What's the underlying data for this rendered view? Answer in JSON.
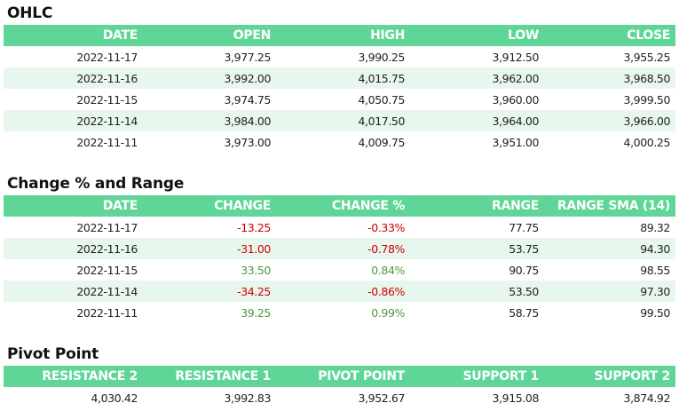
{
  "ohlc": {
    "title": "OHLC",
    "headers": [
      "DATE",
      "OPEN",
      "HIGH",
      "LOW",
      "CLOSE"
    ],
    "rows": [
      [
        "2022-11-17",
        "3,977.25",
        "3,990.25",
        "3,912.50",
        "3,955.25"
      ],
      [
        "2022-11-16",
        "3,992.00",
        "4,015.75",
        "3,962.00",
        "3,968.50"
      ],
      [
        "2022-11-15",
        "3,974.75",
        "4,050.75",
        "3,960.00",
        "3,999.50"
      ],
      [
        "2022-11-14",
        "3,984.00",
        "4,017.50",
        "3,964.00",
        "3,966.00"
      ],
      [
        "2022-11-11",
        "3,973.00",
        "4,009.75",
        "3,951.00",
        "4,000.25"
      ]
    ]
  },
  "change": {
    "title": "Change % and Range",
    "headers": [
      "DATE",
      "CHANGE",
      "CHANGE %",
      "RANGE",
      "RANGE SMA (14)"
    ],
    "rows": [
      [
        "2022-11-17",
        "-13.25",
        "-0.33%",
        "77.75",
        "89.32"
      ],
      [
        "2022-11-16",
        "-31.00",
        "-0.78%",
        "53.75",
        "94.30"
      ],
      [
        "2022-11-15",
        "33.50",
        "0.84%",
        "90.75",
        "98.55"
      ],
      [
        "2022-11-14",
        "-34.25",
        "-0.86%",
        "53.50",
        "97.30"
      ],
      [
        "2022-11-11",
        "39.25",
        "0.99%",
        "58.75",
        "99.50"
      ]
    ]
  },
  "pivot": {
    "title": "Pivot Point",
    "headers": [
      "RESISTANCE 2",
      "RESISTANCE 1",
      "PIVOT POINT",
      "SUPPORT 1",
      "SUPPORT 2"
    ],
    "rows": [
      [
        "4,030.42",
        "3,992.83",
        "3,952.67",
        "3,915.08",
        "3,874.92"
      ]
    ]
  },
  "colors": {
    "header_bg": "#5fd698",
    "alt_row_bg": "#e8f7ee",
    "negative": "#cc0000",
    "positive": "#4a9a3a"
  }
}
